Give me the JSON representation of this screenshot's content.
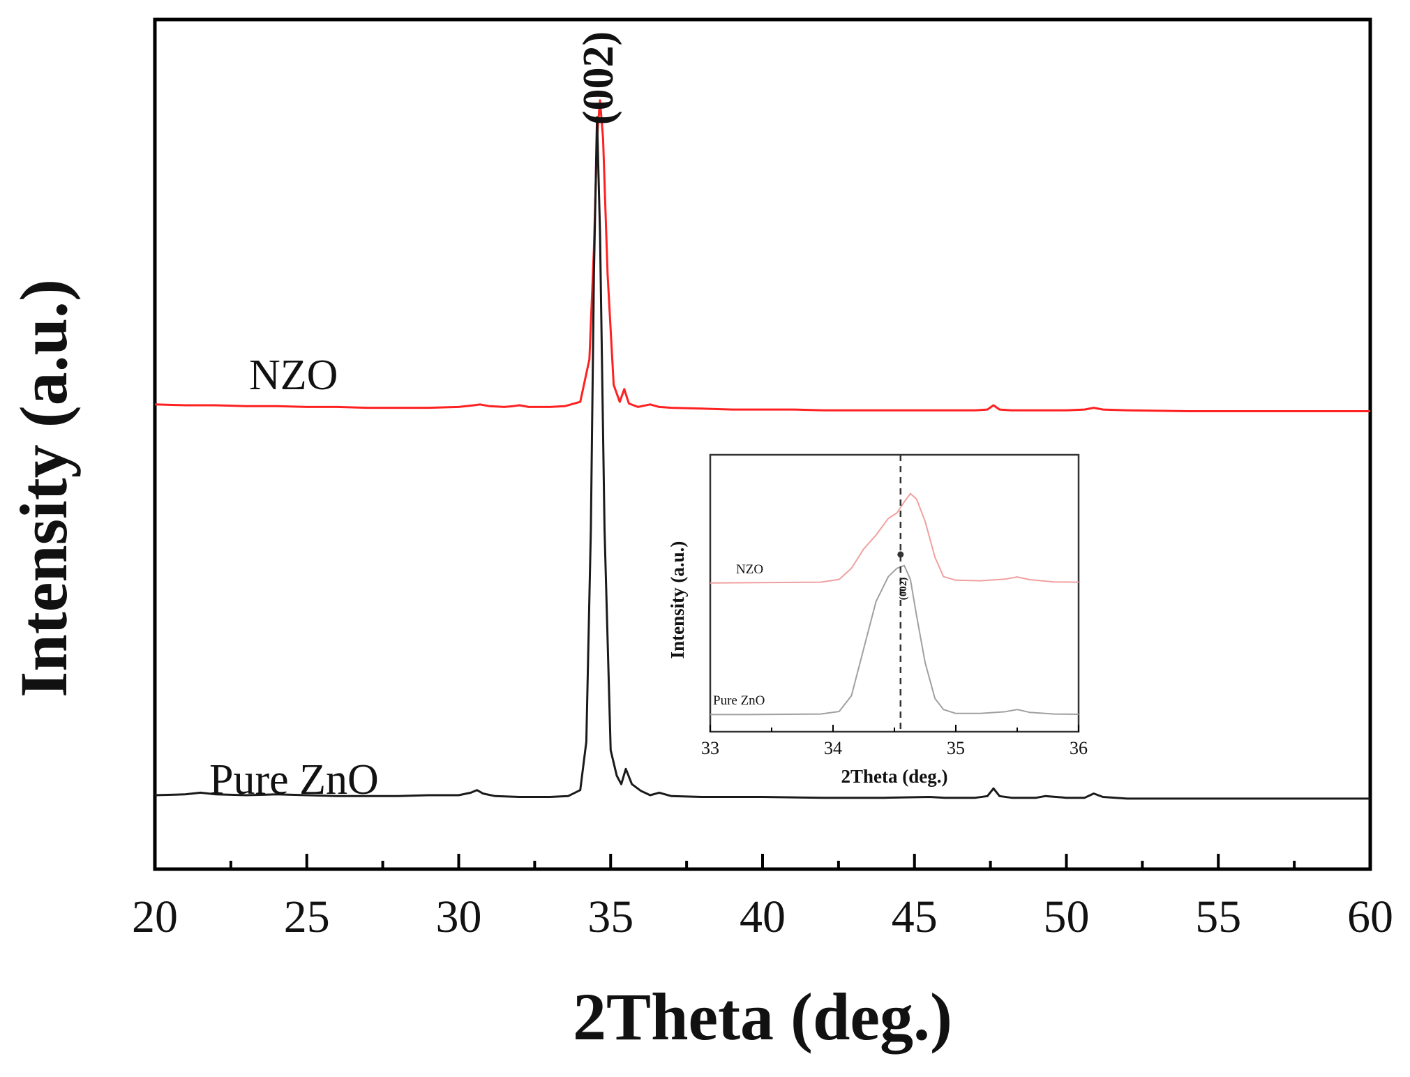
{
  "chart_data": [
    {
      "type": "line",
      "xlabel": "2Theta (deg.)",
      "ylabel": "Intensity (a.u.)",
      "xlim": [
        20,
        60
      ],
      "ylim": [
        0,
        1
      ],
      "x_ticks": [
        20,
        25,
        30,
        35,
        40,
        45,
        50,
        55,
        60
      ],
      "x_tick_labels": [
        "20",
        "25",
        "30",
        "35",
        "40",
        "45",
        "50",
        "55",
        "60"
      ],
      "annotations": [
        {
          "text": "(002)",
          "x": 34.6
        }
      ],
      "colors": {
        "NZO": "#ff2020",
        "Pure ZnO": "#1a1a1a"
      },
      "series": [
        {
          "name": "NZO",
          "label": "NZO",
          "x": [
            20,
            21,
            22,
            23,
            24,
            25,
            26,
            27,
            28,
            29,
            30,
            30.5,
            30.7,
            31,
            31.5,
            31.8,
            32,
            32.3,
            33,
            33.5,
            34,
            34.3,
            34.45,
            34.55,
            34.65,
            34.75,
            34.9,
            35.1,
            35.3,
            35.45,
            35.6,
            35.9,
            36.3,
            36.6,
            37,
            38,
            39,
            40,
            41,
            42,
            43,
            44,
            45,
            46,
            47,
            47.4,
            47.6,
            47.8,
            48.2,
            49,
            50,
            50.6,
            50.9,
            51.2,
            52,
            54,
            56,
            58,
            60
          ],
          "y": [
            0.547,
            0.546,
            0.546,
            0.545,
            0.545,
            0.544,
            0.544,
            0.543,
            0.543,
            0.543,
            0.544,
            0.546,
            0.547,
            0.545,
            0.544,
            0.545,
            0.546,
            0.544,
            0.544,
            0.545,
            0.55,
            0.6,
            0.73,
            0.86,
            0.905,
            0.86,
            0.7,
            0.57,
            0.55,
            0.565,
            0.548,
            0.544,
            0.547,
            0.544,
            0.543,
            0.542,
            0.541,
            0.541,
            0.541,
            0.54,
            0.54,
            0.54,
            0.54,
            0.54,
            0.54,
            0.541,
            0.546,
            0.541,
            0.54,
            0.54,
            0.54,
            0.541,
            0.543,
            0.541,
            0.54,
            0.539,
            0.539,
            0.539,
            0.539
          ]
        },
        {
          "name": "Pure ZnO",
          "label": "Pure ZnO",
          "x": [
            20,
            21,
            21.5,
            22,
            23,
            24,
            25,
            26,
            27,
            28,
            29,
            30,
            30.4,
            30.6,
            30.8,
            31.2,
            32,
            33,
            33.6,
            34,
            34.2,
            34.35,
            34.45,
            34.55,
            34.65,
            34.8,
            35,
            35.2,
            35.35,
            35.5,
            35.7,
            36,
            36.3,
            36.6,
            37,
            38,
            39,
            40,
            42,
            44,
            45.5,
            46,
            47,
            47.4,
            47.6,
            47.8,
            48.2,
            49,
            49.3,
            50,
            50.6,
            50.9,
            51.2,
            52,
            54,
            56,
            58,
            60
          ],
          "y": [
            0.087,
            0.088,
            0.09,
            0.088,
            0.087,
            0.088,
            0.087,
            0.086,
            0.086,
            0.086,
            0.087,
            0.087,
            0.09,
            0.093,
            0.089,
            0.086,
            0.085,
            0.085,
            0.086,
            0.093,
            0.15,
            0.4,
            0.7,
            0.885,
            0.75,
            0.4,
            0.14,
            0.11,
            0.1,
            0.118,
            0.1,
            0.092,
            0.087,
            0.09,
            0.086,
            0.085,
            0.085,
            0.085,
            0.084,
            0.084,
            0.085,
            0.084,
            0.084,
            0.086,
            0.095,
            0.086,
            0.084,
            0.084,
            0.086,
            0.084,
            0.084,
            0.089,
            0.085,
            0.083,
            0.083,
            0.083,
            0.083,
            0.083
          ]
        }
      ]
    },
    {
      "type": "line",
      "name": "inset",
      "xlabel": "2Theta (deg.)",
      "ylabel": "Intensity (a.u.)",
      "xlim": [
        33,
        36
      ],
      "ylim": [
        0,
        1
      ],
      "x_ticks": [
        33,
        34,
        35,
        36
      ],
      "x_tick_labels": [
        "33",
        "34",
        "35",
        "36"
      ],
      "reference_line_x": 34.55,
      "annotations": [
        {
          "text": "(002)",
          "x": 34.55
        }
      ],
      "colors": {
        "NZO": "#f0a0a0",
        "Pure ZnO": "#a0a0a0"
      },
      "series": [
        {
          "name": "NZO",
          "label": "NZO",
          "x": [
            33,
            33.3,
            33.6,
            33.9,
            34.05,
            34.15,
            34.25,
            34.35,
            34.45,
            34.52,
            34.58,
            34.63,
            34.68,
            34.75,
            34.83,
            34.9,
            35,
            35.2,
            35.4,
            35.5,
            35.6,
            35.8,
            36
          ],
          "y": [
            0.537,
            0.538,
            0.539,
            0.54,
            0.55,
            0.59,
            0.66,
            0.71,
            0.77,
            0.79,
            0.83,
            0.86,
            0.84,
            0.76,
            0.63,
            0.56,
            0.547,
            0.545,
            0.551,
            0.559,
            0.549,
            0.541,
            0.54
          ]
        },
        {
          "name": "Pure ZnO",
          "label": "Pure ZnO",
          "x": [
            33,
            33.3,
            33.6,
            33.9,
            34.05,
            34.15,
            34.25,
            34.35,
            34.45,
            34.52,
            34.58,
            34.63,
            34.68,
            34.75,
            34.83,
            34.9,
            35,
            35.2,
            35.4,
            35.5,
            35.6,
            35.8,
            36
          ],
          "y": [
            0.062,
            0.062,
            0.063,
            0.064,
            0.073,
            0.13,
            0.3,
            0.47,
            0.56,
            0.59,
            0.6,
            0.55,
            0.42,
            0.25,
            0.12,
            0.08,
            0.066,
            0.066,
            0.072,
            0.08,
            0.07,
            0.064,
            0.063
          ]
        }
      ]
    }
  ]
}
